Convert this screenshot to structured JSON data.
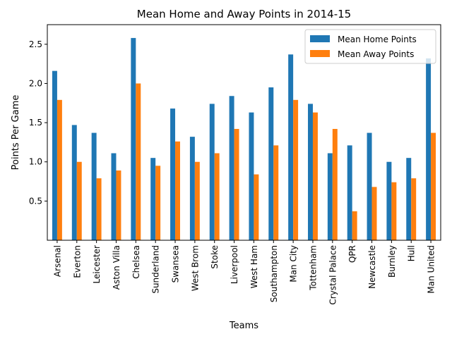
{
  "chart_data": {
    "type": "bar",
    "title": "Mean Home and Away Points in 2014-15",
    "xlabel": "Teams",
    "ylabel": "Points Per Game",
    "ylim": [
      0,
      2.75
    ],
    "yticks": [
      "0.5",
      "1.0",
      "1.5",
      "2.0",
      "2.5"
    ],
    "categories": [
      "Arsenal",
      "Everton",
      "Leicester",
      "Aston Villa",
      "Chelsea",
      "Sunderland",
      "Swansea",
      "West Brom",
      "Stoke",
      "Liverpool",
      "West Ham",
      "Southampton",
      "Man City",
      "Tottenham",
      "Crystal Palace",
      "QPR",
      "Newcastle",
      "Burnley",
      "Hull",
      "Man United"
    ],
    "series": [
      {
        "name": "Mean Home Points",
        "color": "#1f77b4",
        "values": [
          2.16,
          1.47,
          1.37,
          1.11,
          2.58,
          1.05,
          1.68,
          1.32,
          1.74,
          1.84,
          1.63,
          1.95,
          2.37,
          1.74,
          1.11,
          1.21,
          1.37,
          1.0,
          1.05,
          2.32
        ]
      },
      {
        "name": "Mean Away Points",
        "color": "#ff7f0e",
        "values": [
          1.79,
          1.0,
          0.79,
          0.89,
          2.0,
          0.95,
          1.26,
          1.0,
          1.11,
          1.42,
          0.84,
          1.21,
          1.79,
          1.63,
          1.42,
          0.37,
          0.68,
          0.74,
          0.79,
          1.37
        ]
      }
    ],
    "grid": false,
    "legend_position": "top-right"
  }
}
